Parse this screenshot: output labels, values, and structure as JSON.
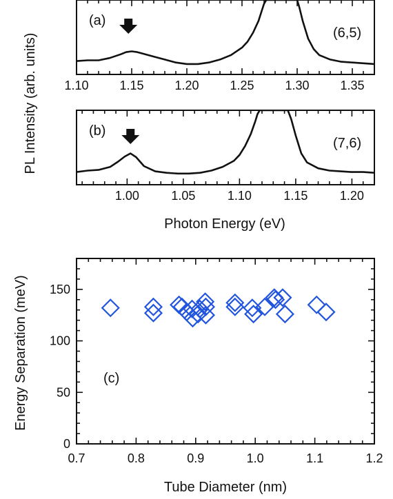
{
  "colors": {
    "axis": "#111111",
    "spectrum": "#111111",
    "marker": "#2255dd"
  },
  "spectra_ylabel": "PL Intensity (arb. units)",
  "chart_data": [
    {
      "id": "a",
      "type": "line",
      "panel_label": "(a)",
      "annotation": "(6,5)",
      "arrow_icon": "down-arrow-icon",
      "arrow_at_x": 1.147,
      "xlabel": "",
      "xlim": [
        1.1,
        1.37
      ],
      "xticks": [
        1.1,
        1.15,
        1.2,
        1.25,
        1.3,
        1.35
      ],
      "xtick_labels": [
        "1.10",
        "1.15",
        "1.20",
        "1.25",
        "1.30",
        "1.35"
      ],
      "ylim": [
        0,
        1
      ],
      "x": [
        1.1,
        1.11,
        1.12,
        1.13,
        1.14,
        1.145,
        1.15,
        1.155,
        1.16,
        1.17,
        1.18,
        1.19,
        1.2,
        1.21,
        1.22,
        1.23,
        1.24,
        1.25,
        1.255,
        1.26,
        1.265,
        1.268,
        1.27,
        1.272,
        1.3,
        1.302,
        1.305,
        1.31,
        1.315,
        1.32,
        1.33,
        1.34,
        1.35,
        1.36,
        1.37
      ],
      "y": [
        0.18,
        0.19,
        0.19,
        0.22,
        0.27,
        0.3,
        0.31,
        0.3,
        0.28,
        0.24,
        0.2,
        0.16,
        0.14,
        0.14,
        0.16,
        0.2,
        0.26,
        0.36,
        0.44,
        0.56,
        0.72,
        0.86,
        0.95,
        1.0,
        1.0,
        0.9,
        0.72,
        0.48,
        0.34,
        0.26,
        0.2,
        0.17,
        0.16,
        0.15,
        0.14
      ]
    },
    {
      "id": "b",
      "type": "line",
      "panel_label": "(b)",
      "annotation": "(7,6)",
      "arrow_icon": "down-arrow-icon",
      "arrow_at_x": 1.003,
      "xlabel": "Photon Energy (eV)",
      "xlim": [
        0.955,
        1.22
      ],
      "xticks": [
        1.0,
        1.05,
        1.1,
        1.15,
        1.2
      ],
      "xtick_labels": [
        "1.00",
        "1.05",
        "1.10",
        "1.15",
        "1.20"
      ],
      "ylim": [
        0,
        1
      ],
      "x": [
        0.955,
        0.965,
        0.975,
        0.985,
        0.992,
        0.998,
        1.003,
        1.008,
        1.015,
        1.025,
        1.035,
        1.045,
        1.055,
        1.065,
        1.075,
        1.085,
        1.095,
        1.1,
        1.105,
        1.11,
        1.114,
        1.116,
        1.118,
        1.143,
        1.146,
        1.15,
        1.155,
        1.16,
        1.17,
        1.18,
        1.19,
        1.2,
        1.21,
        1.22
      ],
      "y": [
        0.17,
        0.19,
        0.2,
        0.24,
        0.31,
        0.38,
        0.42,
        0.37,
        0.25,
        0.18,
        0.16,
        0.15,
        0.15,
        0.16,
        0.19,
        0.24,
        0.32,
        0.4,
        0.52,
        0.68,
        0.85,
        0.95,
        1.0,
        1.0,
        0.88,
        0.66,
        0.42,
        0.3,
        0.22,
        0.19,
        0.18,
        0.17,
        0.17,
        0.16
      ]
    },
    {
      "id": "c",
      "type": "scatter",
      "panel_label": "(c)",
      "marker_icon": "diamond-icon",
      "xlabel": "Tube Diameter (nm)",
      "ylabel": "Energy Separation (meV)",
      "xlim": [
        0.7,
        1.2
      ],
      "ylim": [
        0,
        180
      ],
      "xticks": [
        0.7,
        0.8,
        0.9,
        1.0,
        1.1,
        1.2
      ],
      "xtick_labels": [
        "0.7",
        "0.8",
        "0.9",
        "1.0",
        "1.1",
        "1.2"
      ],
      "yticks": [
        0,
        50,
        100,
        150
      ],
      "ytick_labels": [
        "0",
        "50",
        "100",
        "150"
      ],
      "points": [
        [
          0.757,
          132
        ],
        [
          0.829,
          133
        ],
        [
          0.829,
          127
        ],
        [
          0.872,
          135
        ],
        [
          0.877,
          133
        ],
        [
          0.885,
          128
        ],
        [
          0.894,
          131
        ],
        [
          0.895,
          122
        ],
        [
          0.904,
          126
        ],
        [
          0.907,
          131
        ],
        [
          0.916,
          138
        ],
        [
          0.917,
          133
        ],
        [
          0.917,
          125
        ],
        [
          0.966,
          137
        ],
        [
          0.966,
          133
        ],
        [
          0.995,
          132
        ],
        [
          0.997,
          126
        ],
        [
          1.016,
          133
        ],
        [
          1.032,
          142
        ],
        [
          1.034,
          140
        ],
        [
          1.046,
          142
        ],
        [
          1.05,
          126
        ],
        [
          1.103,
          135
        ],
        [
          1.119,
          128
        ]
      ]
    }
  ]
}
